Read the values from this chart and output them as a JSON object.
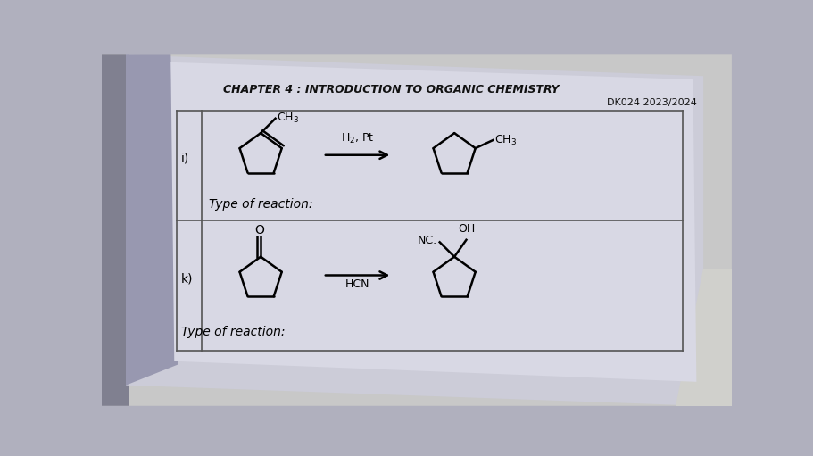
{
  "bg_color": "#c8c8d0",
  "page_left_color": "#9090a8",
  "page_main_color": "#d0d0de",
  "page_light_color": "#dcdce8",
  "table_line_color": "#666666",
  "title": "CHAPTER 4 : INTRODUCTION TO ORGANIC CHEMISTRY",
  "subtitle": "DK024 2023/2024",
  "label_i": "i)",
  "label_k": "k)",
  "reaction_i_arrow": "H₂, Pt",
  "reaction_k_arrow": "HCN",
  "type_of_reaction": "Type of reaction:",
  "title_fontsize": 9,
  "subtitle_fontsize": 8,
  "label_fontsize": 10,
  "body_fontsize": 9,
  "chem_fontsize": 9
}
